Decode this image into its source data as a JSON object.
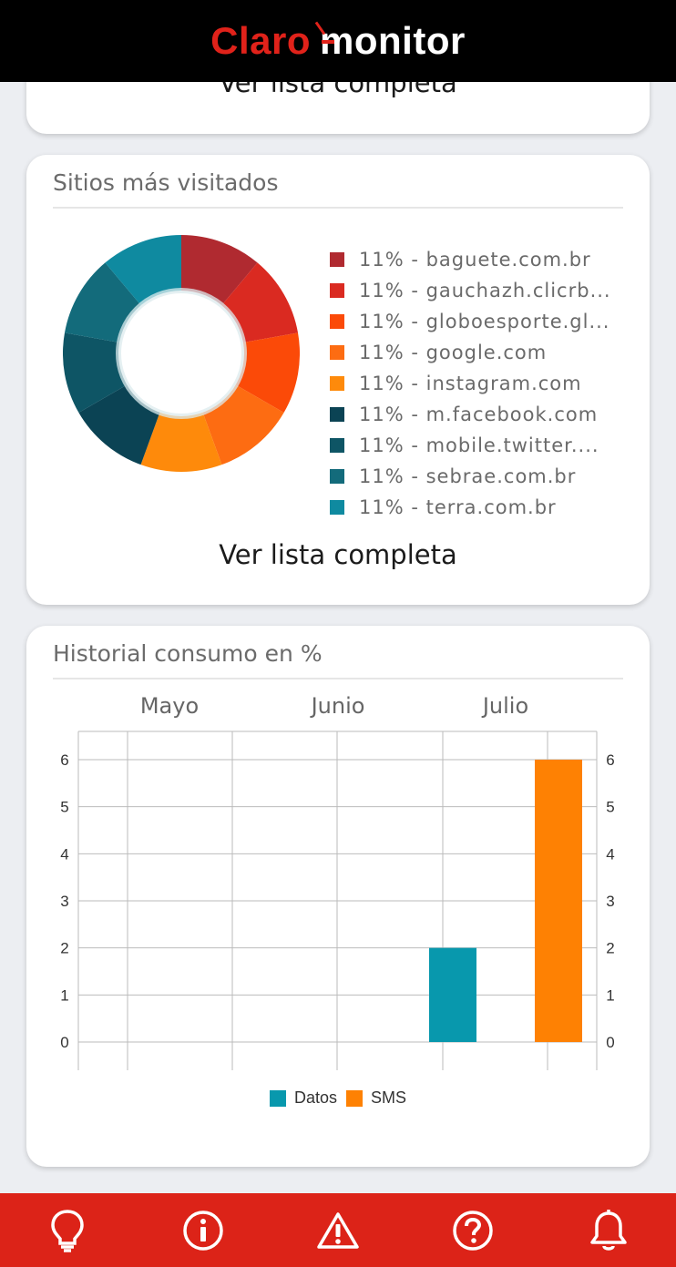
{
  "header": {
    "brand_claro": "Claro",
    "brand_monitor": "monitor"
  },
  "card1": {
    "link": "Ver lista completa"
  },
  "sites": {
    "title": "Sitios más visitados",
    "link": "Ver lista completa",
    "items": [
      {
        "label": "11% - baguete.com.br",
        "color": "#b02a30"
      },
      {
        "label": "11% - gauchazh.clicrb...",
        "color": "#da2a21"
      },
      {
        "label": "11% - globoesporte.gl...",
        "color": "#fb4a08"
      },
      {
        "label": "11% - google.com",
        "color": "#fd6c12"
      },
      {
        "label": "11% - instagram.com",
        "color": "#fe8a0b"
      },
      {
        "label": "11% - m.facebook.com",
        "color": "#0b4354"
      },
      {
        "label": "11% - mobile.twitter....",
        "color": "#0e5565"
      },
      {
        "label": "11% - sebrae.com.br",
        "color": "#136b7b"
      },
      {
        "label": "11% - terra.com.br",
        "color": "#0f8aa0"
      }
    ]
  },
  "history": {
    "title": "Historial consumo en %",
    "months": [
      "Mayo",
      "Junio",
      "Julio"
    ]
  },
  "chart_data": {
    "type": "bar",
    "categories": [
      "Mayo",
      "Junio",
      "Julio"
    ],
    "series": [
      {
        "name": "Datos",
        "values": [
          0,
          0,
          2
        ],
        "color": "#0898ad"
      },
      {
        "name": "SMS",
        "values": [
          0,
          0,
          6
        ],
        "color": "#fe8103"
      }
    ],
    "yticks": [
      "0",
      "1",
      "2",
      "3",
      "4",
      "5",
      "6"
    ],
    "ylim": [
      0,
      6
    ],
    "grid": true,
    "legend": "bottom"
  },
  "bottom_nav": [
    {
      "icon": "lightbulb-icon"
    },
    {
      "icon": "info-icon"
    },
    {
      "icon": "warning-icon"
    },
    {
      "icon": "help-icon"
    },
    {
      "icon": "bell-icon"
    }
  ]
}
